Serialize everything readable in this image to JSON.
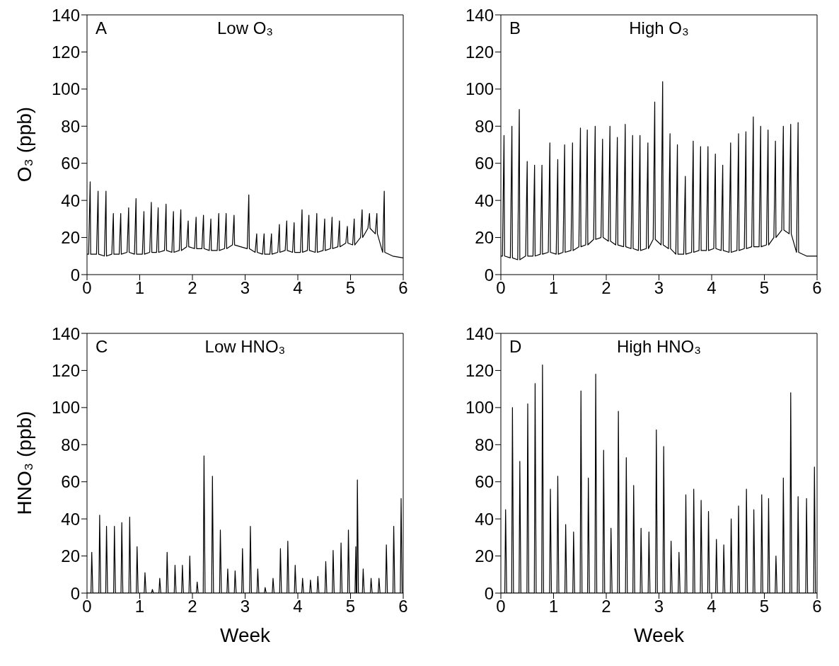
{
  "chart_data": [
    {
      "type": "line",
      "title": "Low O₃",
      "annotations": [
        "A"
      ],
      "ylabel": "O₃ (ppb)",
      "xlim": [
        0,
        6
      ],
      "xticks": [
        0,
        1,
        2,
        3,
        4,
        5,
        6
      ],
      "ylim": [
        0,
        140
      ],
      "yticks": [
        0,
        20,
        40,
        60,
        80,
        100,
        120,
        140
      ],
      "series": [
        {
          "color": "#000000",
          "x": [
            0,
            0.03,
            0.06,
            0.07,
            0.18,
            0.21,
            0.22,
            0.33,
            0.36,
            0.37,
            0.47,
            0.5,
            0.51,
            0.61,
            0.64,
            0.65,
            0.76,
            0.79,
            0.8,
            0.9,
            0.93,
            0.94,
            1.05,
            1.08,
            1.09,
            1.19,
            1.22,
            1.23,
            1.32,
            1.35,
            1.36,
            1.47,
            1.5,
            1.51,
            1.61,
            1.64,
            1.65,
            1.75,
            1.78,
            1.79,
            1.89,
            1.92,
            1.93,
            2.04,
            2.07,
            2.08,
            2.18,
            2.21,
            2.22,
            2.32,
            2.35,
            2.36,
            2.47,
            2.5,
            2.51,
            2.61,
            2.64,
            2.65,
            2.76,
            2.79,
            2.8,
            3.04,
            3.07,
            3.08,
            3.19,
            3.22,
            3.23,
            3.33,
            3.36,
            3.37,
            3.47,
            3.5,
            3.51,
            3.62,
            3.65,
            3.66,
            3.76,
            3.79,
            3.8,
            3.9,
            3.93,
            3.94,
            4.05,
            4.08,
            4.09,
            4.18,
            4.21,
            4.22,
            4.33,
            4.36,
            4.37,
            4.48,
            4.51,
            4.52,
            4.62,
            4.65,
            4.66,
            4.76,
            4.79,
            4.8,
            4.91,
            4.94,
            4.95,
            5.04,
            5.07,
            5.08,
            5.19,
            5.22,
            5.23,
            5.33,
            5.36,
            5.37,
            5.47,
            5.5,
            5.51,
            5.61,
            5.64,
            5.65,
            5.8,
            6
          ],
          "values": [
            11,
            11,
            50,
            11,
            11,
            45,
            11,
            10,
            45,
            10,
            11,
            33,
            11,
            11,
            33,
            11,
            12,
            36,
            12,
            11,
            41,
            11,
            11,
            34,
            11,
            12,
            39,
            12,
            12,
            36,
            12,
            13,
            38,
            13,
            12,
            34,
            12,
            13,
            35,
            13,
            15,
            29,
            15,
            14,
            31,
            14,
            14,
            32,
            14,
            13,
            30,
            13,
            13,
            33,
            13,
            14,
            33,
            14,
            16,
            32,
            16,
            14,
            43,
            14,
            12,
            22,
            12,
            11,
            22,
            11,
            11,
            22,
            11,
            12,
            27,
            12,
            13,
            29,
            13,
            12,
            28,
            12,
            12,
            35,
            12,
            13,
            32,
            13,
            12,
            33,
            12,
            13,
            30,
            13,
            14,
            31,
            14,
            15,
            29,
            15,
            17,
            26,
            17,
            16,
            30,
            16,
            20,
            35,
            20,
            25,
            33,
            25,
            22,
            33,
            22,
            12,
            45,
            12,
            10,
            9
          ]
        }
      ]
    },
    {
      "type": "line",
      "title": "High O₃",
      "annotations": [
        "B"
      ],
      "xlim": [
        0,
        6
      ],
      "xticks": [
        0,
        1,
        2,
        3,
        4,
        5,
        6
      ],
      "ylim": [
        0,
        140
      ],
      "yticks": [
        0,
        20,
        40,
        60,
        80,
        100,
        120,
        140
      ],
      "series": [
        {
          "color": "#000000",
          "x": [
            0,
            0.03,
            0.06,
            0.07,
            0.18,
            0.21,
            0.22,
            0.32,
            0.35,
            0.36,
            0.47,
            0.5,
            0.51,
            0.61,
            0.64,
            0.65,
            0.75,
            0.78,
            0.79,
            0.9,
            0.93,
            0.94,
            1.05,
            1.08,
            1.09,
            1.18,
            1.21,
            1.22,
            1.33,
            1.36,
            1.37,
            1.48,
            1.51,
            1.52,
            1.61,
            1.64,
            1.65,
            1.76,
            1.79,
            1.8,
            1.9,
            1.93,
            1.94,
            2.04,
            2.07,
            2.08,
            2.18,
            2.21,
            2.22,
            2.33,
            2.36,
            2.37,
            2.47,
            2.5,
            2.51,
            2.61,
            2.64,
            2.65,
            2.76,
            2.79,
            2.8,
            2.89,
            2.92,
            2.93,
            3.04,
            3.07,
            3.08,
            3.18,
            3.21,
            3.22,
            3.32,
            3.35,
            3.36,
            3.47,
            3.5,
            3.51,
            3.62,
            3.65,
            3.66,
            3.76,
            3.79,
            3.8,
            3.9,
            3.93,
            3.94,
            4.04,
            4.07,
            4.08,
            4.18,
            4.21,
            4.22,
            4.33,
            4.36,
            4.37,
            4.48,
            4.51,
            4.52,
            4.62,
            4.65,
            4.66,
            4.76,
            4.79,
            4.8,
            4.9,
            4.93,
            4.94,
            5.04,
            5.07,
            5.08,
            5.18,
            5.21,
            5.22,
            5.33,
            5.36,
            5.37,
            5.47,
            5.5,
            5.51,
            5.61,
            5.64,
            5.65,
            5.8,
            6
          ],
          "values": [
            10,
            10,
            75,
            10,
            9,
            80,
            9,
            8,
            89,
            8,
            10,
            61,
            10,
            10,
            59,
            10,
            11,
            59,
            11,
            12,
            71,
            12,
            11,
            62,
            11,
            12,
            70,
            12,
            13,
            71,
            13,
            15,
            79,
            15,
            16,
            78,
            16,
            19,
            80,
            19,
            20,
            73,
            20,
            18,
            80,
            18,
            16,
            74,
            16,
            15,
            81,
            15,
            14,
            75,
            14,
            13,
            75,
            13,
            14,
            71,
            14,
            19,
            93,
            19,
            16,
            104,
            16,
            14,
            76,
            14,
            11,
            70,
            11,
            11,
            53,
            11,
            12,
            72,
            12,
            13,
            69,
            13,
            13,
            69,
            13,
            14,
            65,
            14,
            13,
            59,
            13,
            12,
            71,
            12,
            13,
            76,
            13,
            14,
            77,
            14,
            15,
            85,
            15,
            15,
            80,
            15,
            16,
            78,
            16,
            20,
            72,
            20,
            24,
            80,
            24,
            22,
            81,
            22,
            12,
            82,
            12,
            10,
            10
          ]
        }
      ]
    },
    {
      "type": "line",
      "title": "Low HNO₃",
      "annotations": [
        "C"
      ],
      "ylabel": "HNO₃ (ppb)",
      "xlabel": "Week",
      "xlim": [
        0,
        6
      ],
      "xticks": [
        0,
        1,
        2,
        3,
        4,
        5,
        6
      ],
      "ylim": [
        0,
        140
      ],
      "yticks": [
        0,
        20,
        40,
        60,
        80,
        100,
        120,
        140
      ],
      "series": [
        {
          "color": "#000000",
          "x": [
            0,
            0.075,
            0.09,
            0.11,
            0.225,
            0.24,
            0.26,
            0.355,
            0.37,
            0.39,
            0.505,
            0.52,
            0.54,
            0.645,
            0.66,
            0.68,
            0.795,
            0.81,
            0.83,
            0.935,
            0.95,
            0.97,
            1.085,
            1.1,
            1.12,
            1.225,
            1.24,
            1.26,
            1.365,
            1.38,
            1.4,
            1.505,
            1.52,
            1.54,
            1.655,
            1.67,
            1.69,
            1.795,
            1.81,
            1.83,
            1.935,
            1.95,
            1.97,
            2.075,
            2.09,
            2.11,
            2.205,
            2.22,
            2.24,
            2.365,
            2.38,
            2.4,
            2.515,
            2.53,
            2.55,
            2.655,
            2.67,
            2.69,
            2.795,
            2.81,
            2.83,
            2.935,
            2.95,
            2.97,
            3.085,
            3.1,
            3.12,
            3.225,
            3.24,
            3.26,
            3.365,
            3.38,
            3.4,
            3.515,
            3.53,
            3.55,
            3.655,
            3.67,
            3.69,
            3.795,
            3.81,
            3.83,
            3.935,
            3.95,
            3.97,
            4.075,
            4.09,
            4.11,
            4.225,
            4.24,
            4.26,
            4.365,
            4.38,
            4.4,
            4.515,
            4.53,
            4.55,
            4.655,
            4.67,
            4.69,
            4.805,
            4.82,
            4.84,
            4.945,
            4.96,
            4.98,
            5.085,
            5.1,
            5.11,
            5.12,
            5.13,
            5.15,
            5.225,
            5.24,
            5.26,
            5.375,
            5.39,
            5.41,
            5.525,
            5.54,
            5.56,
            5.665,
            5.68,
            5.7,
            5.805,
            5.82,
            5.84,
            5.945,
            5.96,
            5.98,
            6
          ],
          "values": [
            0,
            0,
            22,
            0,
            0,
            42,
            0,
            0,
            36,
            0,
            0,
            36,
            0,
            0,
            38,
            0,
            0,
            41,
            0,
            0,
            25,
            0,
            0,
            11,
            0,
            0,
            2,
            0,
            0,
            8,
            0,
            0,
            22,
            0,
            0,
            15,
            0,
            0,
            15,
            0,
            0,
            20,
            0,
            0,
            6,
            0,
            0,
            74,
            0,
            0,
            63,
            0,
            0,
            34,
            0,
            0,
            13,
            0,
            0,
            12,
            0,
            0,
            24,
            0,
            0,
            36,
            0,
            0,
            13,
            0,
            0,
            3,
            0,
            0,
            8,
            0,
            0,
            24,
            0,
            0,
            28,
            0,
            0,
            15,
            0,
            0,
            8,
            0,
            0,
            7,
            0,
            0,
            9,
            0,
            0,
            17,
            0,
            0,
            23,
            0,
            0,
            27,
            0,
            0,
            34,
            0,
            0,
            25,
            0,
            0,
            61,
            0,
            0,
            13,
            0,
            0,
            8,
            0,
            0,
            8,
            0,
            0,
            26,
            0,
            0,
            36,
            0,
            0,
            51,
            0,
            0
          ]
        }
      ]
    },
    {
      "type": "line",
      "title": "High HNO₃",
      "annotations": [
        "D"
      ],
      "xlabel": "Week",
      "xlim": [
        0,
        6
      ],
      "xticks": [
        0,
        1,
        2,
        3,
        4,
        5,
        6
      ],
      "ylim": [
        0,
        140
      ],
      "yticks": [
        0,
        20,
        40,
        60,
        80,
        100,
        120,
        140
      ],
      "series": [
        {
          "color": "#000000",
          "x": [
            0,
            0.075,
            0.09,
            0.11,
            0.205,
            0.22,
            0.24,
            0.345,
            0.36,
            0.38,
            0.495,
            0.51,
            0.53,
            0.635,
            0.65,
            0.67,
            0.775,
            0.79,
            0.81,
            0.925,
            0.94,
            0.96,
            1.065,
            1.08,
            1.1,
            1.215,
            1.23,
            1.25,
            1.365,
            1.38,
            1.4,
            1.505,
            1.52,
            1.54,
            1.645,
            1.66,
            1.68,
            1.785,
            1.8,
            1.82,
            1.935,
            1.95,
            1.97,
            2.075,
            2.09,
            2.11,
            2.215,
            2.23,
            2.25,
            2.365,
            2.38,
            2.4,
            2.505,
            2.52,
            2.54,
            2.645,
            2.66,
            2.68,
            2.795,
            2.81,
            2.83,
            2.935,
            2.95,
            2.97,
            3.075,
            3.09,
            3.11,
            3.215,
            3.23,
            3.25,
            3.365,
            3.38,
            3.4,
            3.495,
            3.51,
            3.53,
            3.645,
            3.66,
            3.68,
            3.785,
            3.8,
            3.82,
            3.925,
            3.94,
            3.96,
            4.075,
            4.09,
            4.11,
            4.215,
            4.23,
            4.25,
            4.355,
            4.37,
            4.39,
            4.495,
            4.51,
            4.53,
            4.645,
            4.66,
            4.68,
            4.785,
            4.8,
            4.82,
            4.935,
            4.95,
            4.97,
            5.065,
            5.08,
            5.1,
            5.205,
            5.22,
            5.24,
            5.345,
            5.36,
            5.38,
            5.485,
            5.5,
            5.52,
            5.625,
            5.64,
            5.66,
            5.785,
            5.8,
            5.82,
            5.935,
            5.95,
            5.97,
            6
          ],
          "values": [
            0,
            0,
            45,
            0,
            0,
            100,
            0,
            0,
            71,
            0,
            0,
            102,
            0,
            0,
            113,
            0,
            0,
            123,
            0,
            0,
            56,
            0,
            0,
            63,
            0,
            0,
            37,
            0,
            0,
            33,
            0,
            0,
            109,
            0,
            0,
            62,
            0,
            0,
            118,
            0,
            0,
            77,
            0,
            0,
            35,
            0,
            0,
            98,
            0,
            0,
            73,
            0,
            0,
            58,
            0,
            0,
            35,
            0,
            0,
            33,
            0,
            0,
            88,
            0,
            0,
            79,
            0,
            0,
            28,
            0,
            0,
            22,
            0,
            0,
            53,
            0,
            0,
            56,
            0,
            0,
            50,
            0,
            0,
            44,
            0,
            0,
            29,
            0,
            0,
            26,
            0,
            0,
            40,
            0,
            0,
            47,
            0,
            0,
            56,
            0,
            0,
            45,
            0,
            0,
            53,
            0,
            0,
            51,
            0,
            0,
            20,
            0,
            0,
            62,
            0,
            0,
            108,
            0,
            0,
            52,
            0,
            0,
            51,
            0,
            0,
            68,
            0,
            0
          ]
        }
      ]
    }
  ]
}
